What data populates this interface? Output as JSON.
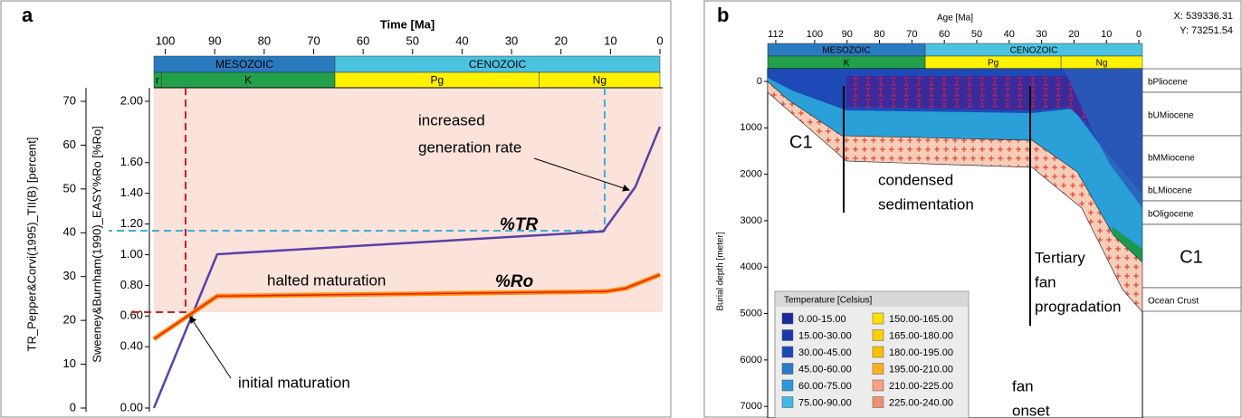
{
  "chart_data": [
    {
      "type": "line",
      "panel": "a",
      "xlabel": "Time [Ma]",
      "ylabel": "TR_Pepper&Corvi(1995)_TII(B) [percent]",
      "y2label": "Sweeney&Burnham(1990)_EASY%Ro [%Ro]",
      "xlim": [
        102.3,
        0
      ],
      "xticks": [
        100,
        90,
        80,
        70,
        60,
        50,
        40,
        30,
        20,
        10,
        0
      ],
      "ylim": [
        0,
        70
      ],
      "yticks": [
        0,
        10,
        20,
        30,
        40,
        50,
        60,
        70
      ],
      "y2lim": [
        0,
        2
      ],
      "y2ticks": [
        {
          "value": 0,
          "label": "0.00"
        },
        {
          "value": 0.4,
          "label": "0.40"
        },
        {
          "value": 0.6,
          "label": "0.60"
        },
        {
          "value": 0.8,
          "label": "0.80"
        },
        {
          "value": 1,
          "label": "1.00"
        },
        {
          "value": 1.2,
          "label": "1.20"
        },
        {
          "value": 1.4,
          "label": "1.40"
        },
        {
          "value": 1.6,
          "label": "1.60"
        },
        {
          "value": 2,
          "label": "2.00"
        }
      ],
      "eras": [
        {
          "name": "MESOZOIC",
          "from": 102.3,
          "to": 65.7,
          "color": "#2a7ac0"
        },
        {
          "name": "CENOZOIC",
          "from": 65.7,
          "to": 0,
          "color": "#4bc3e0"
        }
      ],
      "periods": [
        {
          "name": "r",
          "from": 102.3,
          "to": 100.8,
          "color": "#22a04a"
        },
        {
          "name": "K",
          "from": 100.8,
          "to": 65.7,
          "color": "#22a04a"
        },
        {
          "name": "Pg",
          "from": 65.7,
          "to": 24.4,
          "color": "#fff200"
        },
        {
          "name": "Ng",
          "from": 24.4,
          "to": 0,
          "color": "#fff200"
        }
      ],
      "series": [
        {
          "name": "%TR",
          "color": "#5b3fa8",
          "x": [
            102.3,
            89.5,
            11.5,
            5,
            0
          ],
          "values": [
            0,
            35.1,
            40.3,
            50.4,
            64.2
          ]
        },
        {
          "name": "%Ro",
          "color": "#ff8c00",
          "axis": "y2",
          "x": [
            102.3,
            89.5,
            11,
            7,
            0
          ],
          "values": [
            0.45,
            0.73,
            0.76,
            0.78,
            0.87
          ]
        }
      ],
      "annotations": [
        [
          "increased",
          "generation rate"
        ],
        [
          "halted maturation"
        ],
        [
          "initial maturation"
        ]
      ]
    },
    {
      "type": "burial-history",
      "panel": "b",
      "xlabel": "Age [Ma]",
      "ylabel": "Burial depth [meter]",
      "coords": [
        "X: 539336.31",
        "Y: 73251.54"
      ],
      "xlim": [
        114.5,
        -1.1
      ],
      "xticks": [
        112,
        100,
        90,
        80,
        70,
        60,
        50,
        40,
        30,
        20,
        10,
        0
      ],
      "ylim": [
        -195,
        7250
      ],
      "yticks": [
        0,
        1000,
        2000,
        3000,
        4000,
        5000,
        6000,
        7000
      ],
      "eras": [
        {
          "name": "MESOZOIC",
          "from": 114.5,
          "to": 65.9,
          "color": "#2a7ac0"
        },
        {
          "name": "CENOZOIC",
          "from": 65.9,
          "to": -1.1,
          "color": "#4bc3e0"
        }
      ],
      "periods": [
        {
          "name": "K",
          "from": 114.5,
          "to": 65.9,
          "color": "#22a04a"
        },
        {
          "name": "Pg",
          "from": 65.9,
          "to": 24,
          "color": "#fff200"
        },
        {
          "name": "Ng",
          "from": 24,
          "to": -1.1,
          "color": "#fff200"
        }
      ],
      "horizons": [
        "bPliocene",
        "bUMiocene",
        "bMMiocene",
        "bLMiocene",
        "bOligocene",
        "C1",
        "Ocean Crust"
      ],
      "annotations": [
        [
          "C1"
        ],
        [
          "condensed",
          "sedimentation"
        ],
        [
          "Tertiary",
          "fan",
          "progradation"
        ],
        [
          "fan",
          "onset"
        ]
      ],
      "legend_title": "Temperature [Celsius]",
      "legend": [
        {
          "name": "0.00-15.00",
          "color": "#1a2a9a"
        },
        {
          "name": "15.00-30.00",
          "color": "#1a3aa8"
        },
        {
          "name": "30.00-45.00",
          "color": "#1e4ab8"
        },
        {
          "name": "45.00-60.00",
          "color": "#2a7ac8"
        },
        {
          "name": "60.00-75.00",
          "color": "#2e98d8"
        },
        {
          "name": "75.00-90.00",
          "color": "#40b8e8"
        },
        {
          "name": "150.00-165.00",
          "color": "#ffe000"
        },
        {
          "name": "165.00-180.00",
          "color": "#ffd000"
        },
        {
          "name": "180.00-195.00",
          "color": "#ffc000"
        },
        {
          "name": "195.00-210.00",
          "color": "#ffb020"
        },
        {
          "name": "210.00-225.00",
          "color": "#f8a080"
        },
        {
          "name": "225.00-240.00",
          "color": "#f09070"
        }
      ]
    }
  ]
}
